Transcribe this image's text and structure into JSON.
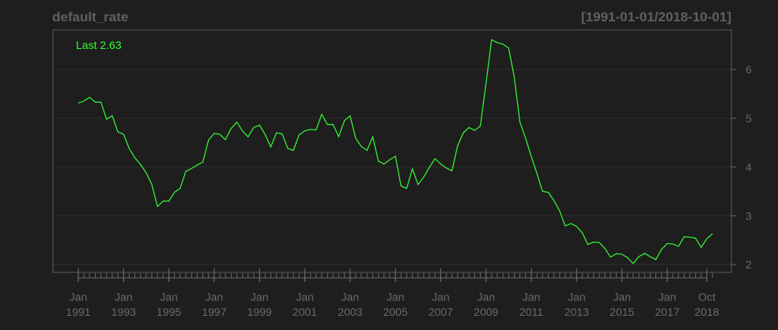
{
  "chart_data": {
    "type": "line",
    "title": "default_rate",
    "date_range_label": "[1991-01-01/2018-10-01]",
    "last_label": "Last 2.63",
    "x_start": "1991-01-01",
    "x_end": "2018-10-01",
    "frequency": "quarterly",
    "ylim": [
      1.8,
      6.8
    ],
    "y_ticks": [
      2,
      3,
      4,
      5,
      6
    ],
    "y_tick_labels": [
      "2",
      "3",
      "4",
      "5",
      "6"
    ],
    "y_axis_position": "right",
    "grid": true,
    "x_tick_labels": [
      {
        "date": "1991-01-01",
        "label": [
          "Jan",
          "1991"
        ]
      },
      {
        "date": "1993-01-01",
        "label": [
          "Jan",
          "1993"
        ]
      },
      {
        "date": "1995-01-01",
        "label": [
          "Jan",
          "1995"
        ]
      },
      {
        "date": "1997-01-01",
        "label": [
          "Jan",
          "1997"
        ]
      },
      {
        "date": "1999-01-01",
        "label": [
          "Jan",
          "1999"
        ]
      },
      {
        "date": "2001-01-01",
        "label": [
          "Jan",
          "2001"
        ]
      },
      {
        "date": "2003-01-01",
        "label": [
          "Jan",
          "2003"
        ]
      },
      {
        "date": "2005-01-01",
        "label": [
          "Jan",
          "2005"
        ]
      },
      {
        "date": "2007-01-01",
        "label": [
          "Jan",
          "2007"
        ]
      },
      {
        "date": "2009-01-01",
        "label": [
          "Jan",
          "2009"
        ]
      },
      {
        "date": "2011-01-01",
        "label": [
          "Jan",
          "2011"
        ]
      },
      {
        "date": "2013-01-01",
        "label": [
          "Jan",
          "2013"
        ]
      },
      {
        "date": "2015-01-01",
        "label": [
          "Jan",
          "2015"
        ]
      },
      {
        "date": "2017-01-01",
        "label": [
          "Jan",
          "2017"
        ]
      },
      {
        "date": "2018-10-01",
        "label": [
          "Oct",
          "2018"
        ]
      }
    ],
    "series": [
      {
        "color": "#33ff33",
        "values": [
          5.31,
          5.35,
          5.43,
          5.33,
          5.33,
          4.98,
          5.05,
          4.72,
          4.67,
          4.38,
          4.19,
          4.05,
          3.88,
          3.64,
          3.19,
          3.3,
          3.3,
          3.48,
          3.56,
          3.91,
          3.97,
          4.04,
          4.1,
          4.55,
          4.69,
          4.67,
          4.56,
          4.79,
          4.92,
          4.74,
          4.62,
          4.81,
          4.86,
          4.67,
          4.41,
          4.7,
          4.68,
          4.38,
          4.34,
          4.66,
          4.74,
          4.77,
          4.76,
          5.08,
          4.87,
          4.87,
          4.62,
          4.95,
          5.05,
          4.59,
          4.42,
          4.34,
          4.62,
          4.12,
          4.06,
          4.15,
          4.22,
          3.61,
          3.56,
          3.96,
          3.64,
          3.79,
          3.99,
          4.17,
          4.06,
          3.98,
          3.92,
          4.44,
          4.7,
          4.81,
          4.75,
          4.84,
          5.72,
          6.61,
          6.55,
          6.52,
          6.44,
          5.84,
          4.92,
          4.59,
          4.21,
          3.87,
          3.5,
          3.48,
          3.31,
          3.1,
          2.79,
          2.84,
          2.78,
          2.65,
          2.41,
          2.46,
          2.45,
          2.33,
          2.15,
          2.22,
          2.21,
          2.14,
          2.02,
          2.16,
          2.23,
          2.16,
          2.1,
          2.31,
          2.43,
          2.42,
          2.37,
          2.57,
          2.56,
          2.54,
          2.35,
          2.53,
          2.63
        ]
      }
    ]
  }
}
